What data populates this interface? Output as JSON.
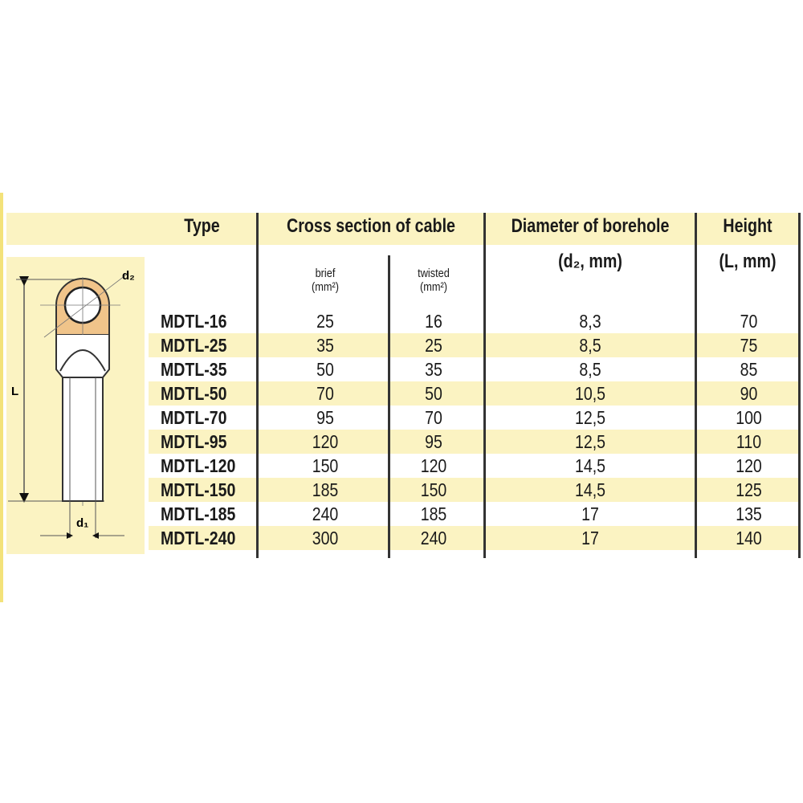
{
  "header": {
    "type": "Type",
    "cross_section": "Cross section of cable",
    "diameter": "Diameter of borehole",
    "height": "Height"
  },
  "subheader": {
    "brief": "brief",
    "brief_unit": "(mm²)",
    "twisted": "twisted",
    "twisted_unit": "(mm²)",
    "diameter_unit": "(d₂, mm)",
    "height_unit": "(L, mm)"
  },
  "diagram": {
    "label_d2": "d₂",
    "label_l": "L",
    "label_d1": "d₁",
    "lug_color": "#f0c48a"
  },
  "rows": [
    {
      "type": "MDTL-16",
      "brief": "25",
      "twisted": "16",
      "diameter": "8,3",
      "height": "70"
    },
    {
      "type": "MDTL-25",
      "brief": "35",
      "twisted": "25",
      "diameter": "8,5",
      "height": "75"
    },
    {
      "type": "MDTL-35",
      "brief": "50",
      "twisted": "35",
      "diameter": "8,5",
      "height": "85"
    },
    {
      "type": "MDTL-50",
      "brief": "70",
      "twisted": "50",
      "diameter": "10,5",
      "height": "90"
    },
    {
      "type": "MDTL-70",
      "brief": "95",
      "twisted": "70",
      "diameter": "12,5",
      "height": "100"
    },
    {
      "type": "MDTL-95",
      "brief": "120",
      "twisted": "95",
      "diameter": "12,5",
      "height": "110"
    },
    {
      "type": "MDTL-120",
      "brief": "150",
      "twisted": "120",
      "diameter": "14,5",
      "height": "120"
    },
    {
      "type": "MDTL-150",
      "brief": "185",
      "twisted": "150",
      "diameter": "14,5",
      "height": "125"
    },
    {
      "type": "MDTL-185",
      "brief": "240",
      "twisted": "185",
      "diameter": "17",
      "height": "135"
    },
    {
      "type": "MDTL-240",
      "brief": "300",
      "twisted": "240",
      "diameter": "17",
      "height": "140"
    }
  ]
}
